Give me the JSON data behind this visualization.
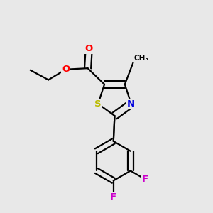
{
  "background_color": "#e8e8e8",
  "bond_color": "#000000",
  "bond_width": 1.6,
  "atom_colors": {
    "O": "#ff0000",
    "N": "#0000dd",
    "S": "#bbbb00",
    "F": "#cc00cc",
    "C": "#000000"
  },
  "font_size_atom": 9.5
}
